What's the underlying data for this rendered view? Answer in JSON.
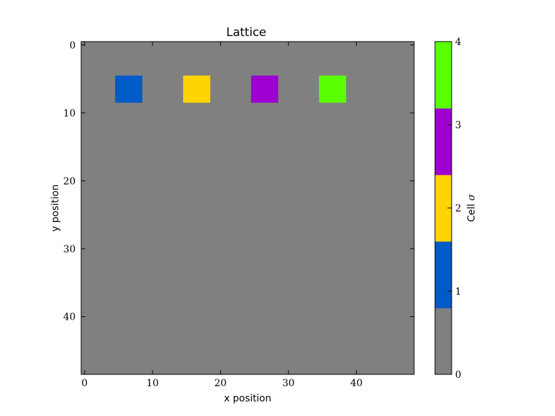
{
  "chart_data": {
    "type": "heatmap",
    "title": "Lattice",
    "xlabel": "x position",
    "ylabel": "y position",
    "xlim": [
      -0.5,
      48.5
    ],
    "ylim": [
      48.5,
      -0.5
    ],
    "xticks": [
      0,
      10,
      20,
      30,
      40
    ],
    "yticks": [
      0,
      10,
      20,
      30,
      40
    ],
    "grid": false,
    "background_value": 0,
    "cells": [
      {
        "value": 1,
        "x": [
          5,
          8
        ],
        "y": [
          5,
          8
        ]
      },
      {
        "value": 2,
        "x": [
          15,
          18
        ],
        "y": [
          5,
          8
        ]
      },
      {
        "value": 3,
        "x": [
          25,
          28
        ],
        "y": [
          5,
          8
        ]
      },
      {
        "value": 4,
        "x": [
          35,
          38
        ],
        "y": [
          5,
          8
        ]
      }
    ],
    "colorbar": {
      "label_text": "Cell ",
      "label_symbol": "σ",
      "range": [
        0,
        4
      ],
      "ticks": [
        0,
        1,
        2,
        3,
        4
      ],
      "colors": [
        "#808080",
        "#005ac8",
        "#ffd400",
        "#9d00d0",
        "#5aff00"
      ]
    }
  }
}
